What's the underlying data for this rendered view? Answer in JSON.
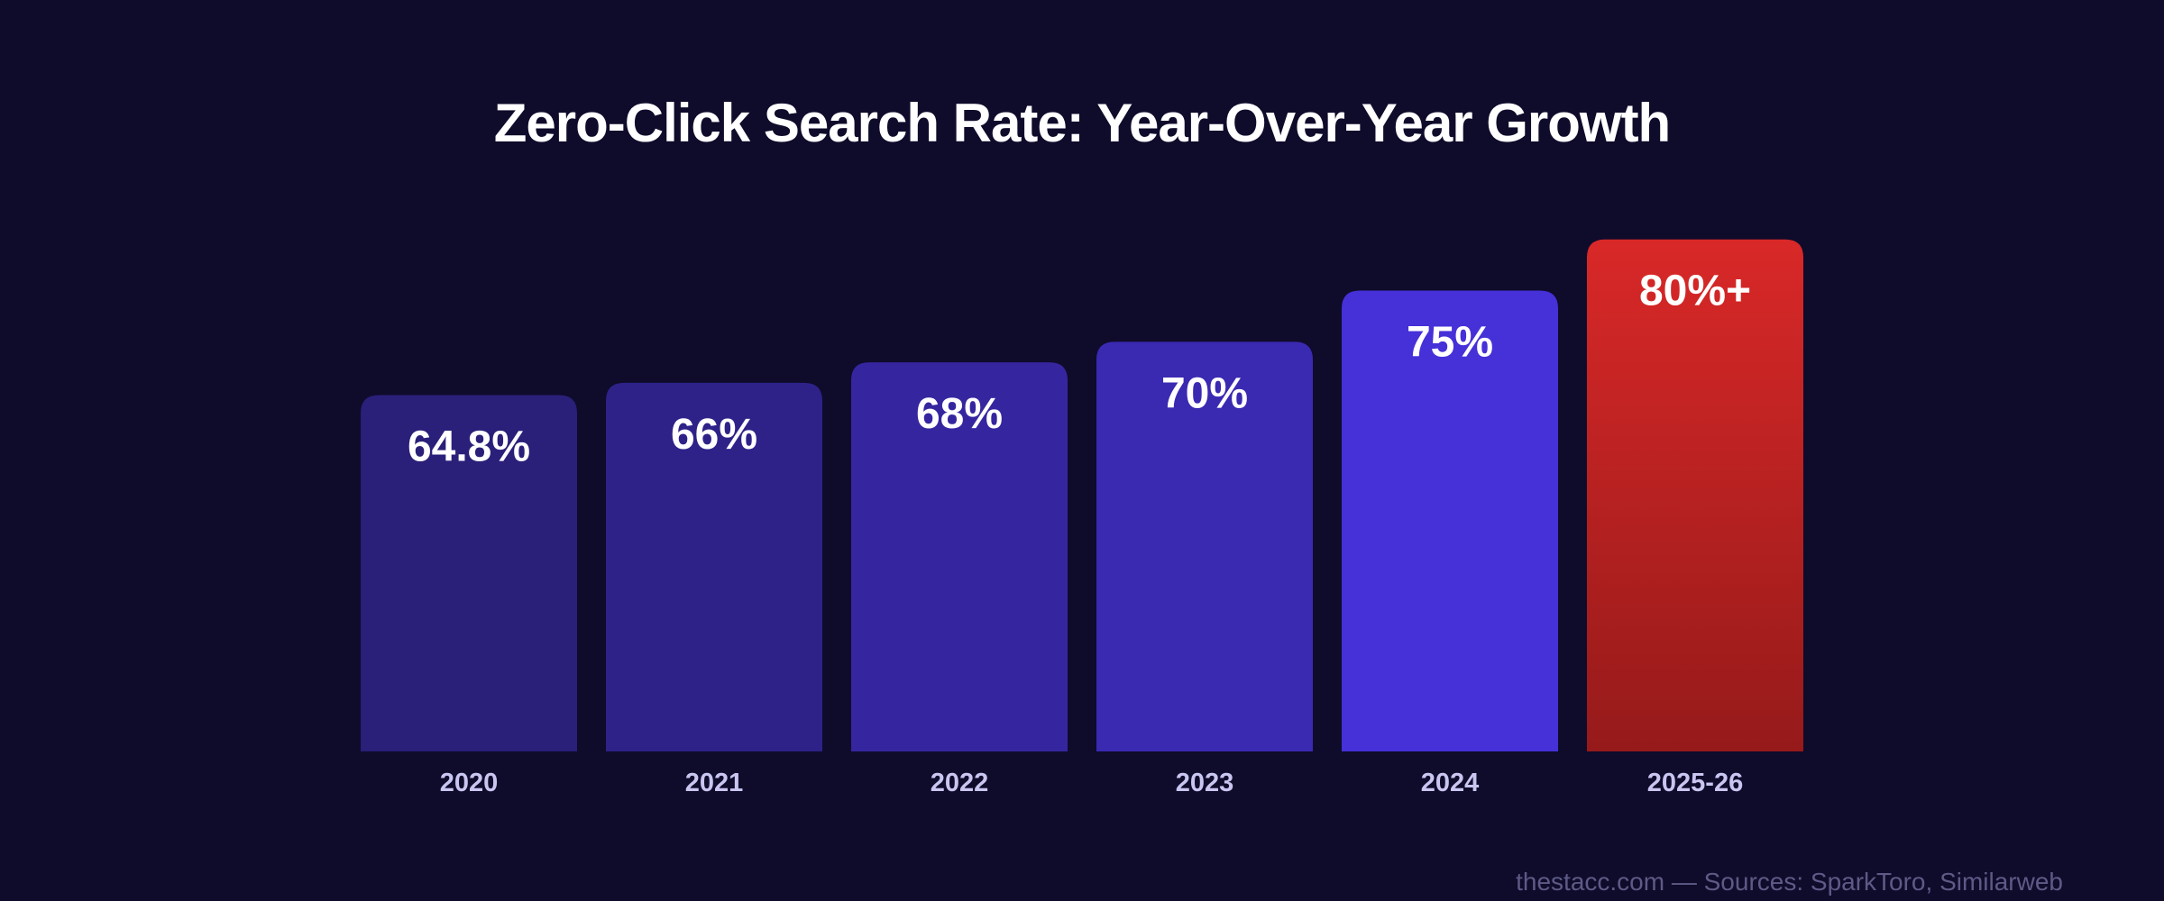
{
  "chart_data": {
    "type": "bar",
    "title": "Zero-Click Search Rate: Year-Over-Year Growth",
    "categories": [
      "2020",
      "2021",
      "2022",
      "2023",
      "2024",
      "2025-26"
    ],
    "values": [
      64.8,
      66,
      68,
      70,
      75,
      80
    ],
    "value_labels": [
      "64.8%",
      "66%",
      "68%",
      "70%",
      "75%",
      "80%+"
    ],
    "bar_colors": [
      "#2a1f79",
      "#2e2289",
      "#3526a0",
      "#3a29b1",
      "#4630d8",
      "#d42626"
    ],
    "highlight_gradient": [
      "#d92828",
      "#961a1a"
    ],
    "xlabel": "",
    "ylabel": "",
    "ylim": [
      30,
      82
    ],
    "grid": false
  },
  "footer": {
    "source": "thestacc.com — Sources: SparkToro, Similarweb"
  }
}
